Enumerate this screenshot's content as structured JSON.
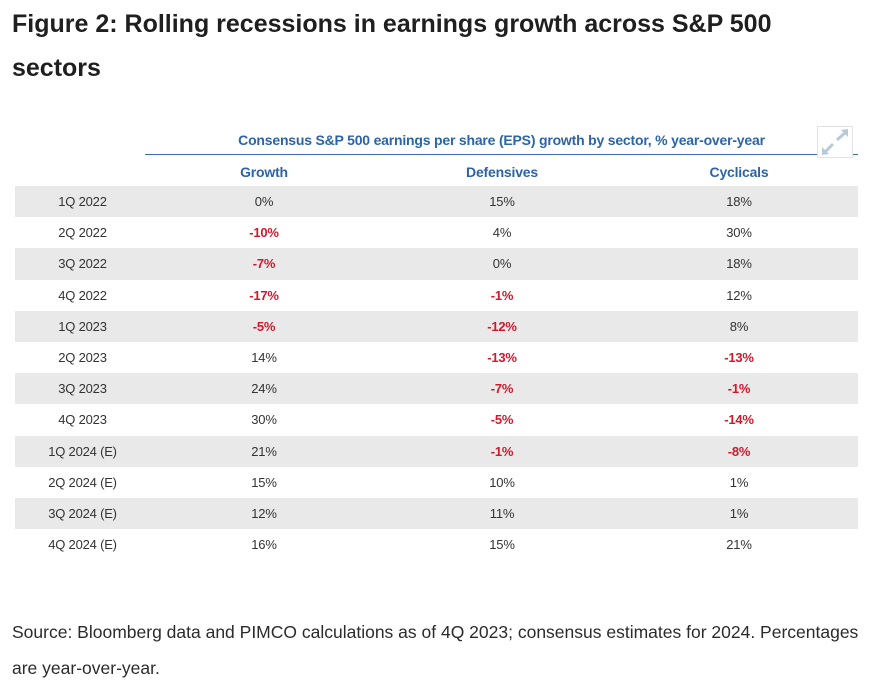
{
  "figure": {
    "title": "Figure 2: Rolling recessions in earnings growth across S&P 500 sectors",
    "subtitle": "Consensus S&P 500 earnings per share (EPS) growth by sector, % year-over-year",
    "source": "Source: Bloomberg data and PIMCO calculations as of 4Q 2023; consensus estimates for 2024. Percentages are year-over-year."
  },
  "icons": {
    "expand": "expand-icon"
  },
  "colors": {
    "header": "#2d64a8",
    "negative": "#d0192b",
    "row_shade": "#e9e9e9"
  },
  "chart_data": {
    "type": "table",
    "title": "Consensus S&P 500 earnings per share (EPS) growth by sector, % year-over-year",
    "columns": [
      "Growth",
      "Defensives",
      "Cyclicals"
    ],
    "rows": [
      {
        "label": "1Q 2022",
        "values": [
          "0%",
          "15%",
          "18%"
        ]
      },
      {
        "label": "2Q 2022",
        "values": [
          "-10%",
          "4%",
          "30%"
        ]
      },
      {
        "label": "3Q 2022",
        "values": [
          "-7%",
          "0%",
          "18%"
        ]
      },
      {
        "label": "4Q 2022",
        "values": [
          "-17%",
          "-1%",
          "12%"
        ]
      },
      {
        "label": "1Q 2023",
        "values": [
          "-5%",
          "-12%",
          "8%"
        ]
      },
      {
        "label": "2Q 2023",
        "values": [
          "14%",
          "-13%",
          "-13%"
        ]
      },
      {
        "label": "3Q 2023",
        "values": [
          "24%",
          "-7%",
          "-1%"
        ]
      },
      {
        "label": "4Q 2023",
        "values": [
          "30%",
          "-5%",
          "-14%"
        ]
      },
      {
        "label": "1Q 2024 (E)",
        "values": [
          "21%",
          "-1%",
          "-8%"
        ]
      },
      {
        "label": "2Q 2024 (E)",
        "values": [
          "15%",
          "10%",
          "1%"
        ]
      },
      {
        "label": "3Q 2024 (E)",
        "values": [
          "12%",
          "11%",
          "1%"
        ]
      },
      {
        "label": "4Q 2024 (E)",
        "values": [
          "16%",
          "15%",
          "21%"
        ]
      }
    ]
  }
}
